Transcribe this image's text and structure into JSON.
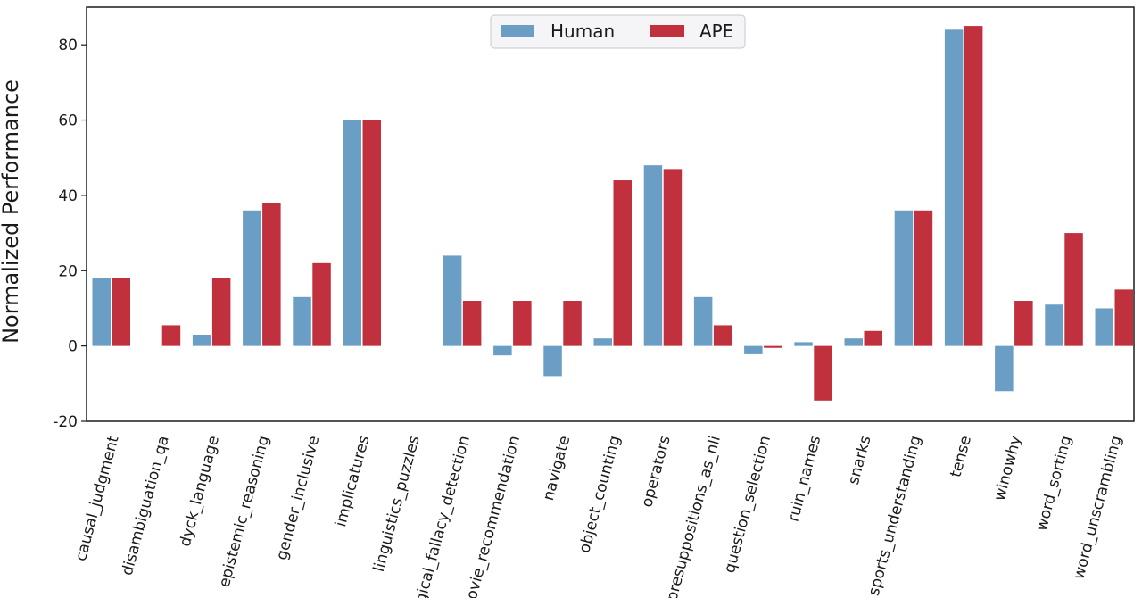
{
  "chart_data": {
    "type": "bar",
    "title": "",
    "xlabel": "",
    "ylabel": "Normalized Performance",
    "ylim": [
      -20,
      90
    ],
    "yticks": [
      -20,
      0,
      20,
      40,
      60,
      80
    ],
    "grid": false,
    "legend_position": "top-center",
    "categories": [
      "causal_judgment",
      "disambiguation_qa",
      "dyck_language",
      "epistemic_reasoning",
      "gender_inclusive",
      "implicatures",
      "linguistics_puzzles",
      "logical_fallacy_detection",
      "movie_recommendation",
      "navigate",
      "object_counting",
      "operators",
      "presuppositions_as_nli",
      "question_selection",
      "ruin_names",
      "snarks",
      "sports_understanding",
      "tense",
      "winowhy",
      "word_sorting",
      "word_unscrambling"
    ],
    "series": [
      {
        "name": "Human",
        "color": "#6a9ec5",
        "values": [
          18,
          0,
          3,
          36,
          13,
          60,
          0,
          24,
          -2.5,
          -8,
          2,
          48,
          13,
          -2.2,
          1,
          2,
          36,
          84,
          -12,
          11,
          10
        ]
      },
      {
        "name": "APE",
        "color": "#c0303d",
        "values": [
          18,
          5.5,
          18,
          38,
          22,
          60,
          0,
          12,
          12,
          12,
          44,
          47,
          5.5,
          -0.5,
          -14.5,
          4,
          36,
          85,
          12,
          30,
          15
        ]
      }
    ]
  }
}
